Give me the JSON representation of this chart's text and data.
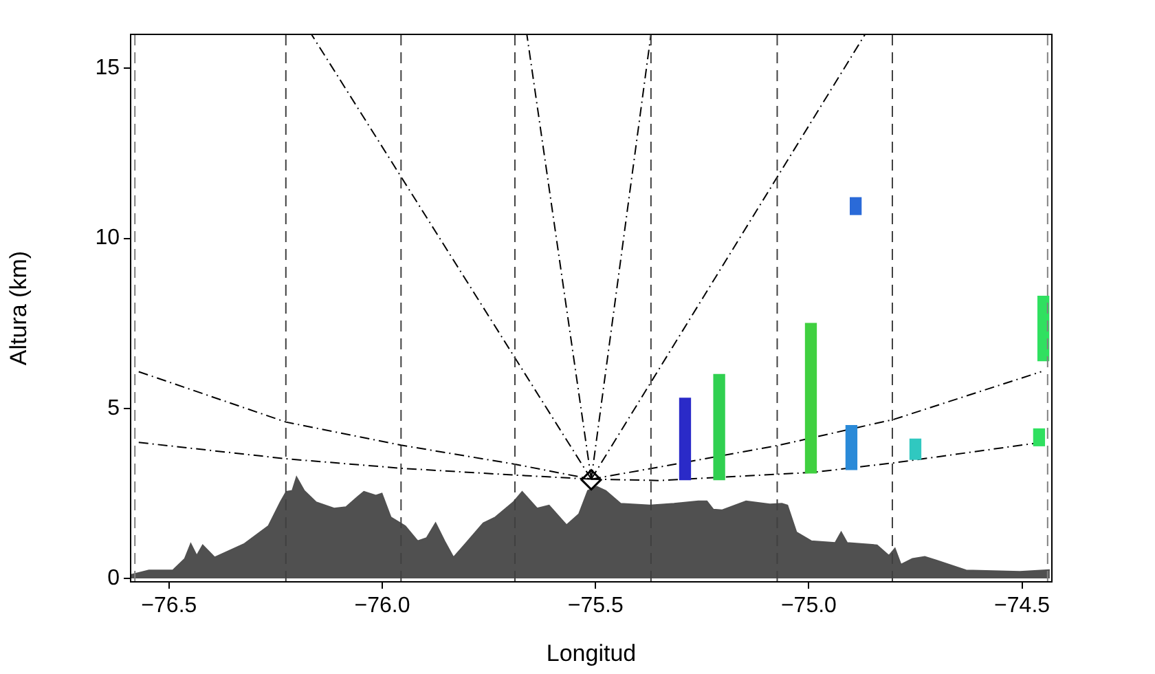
{
  "chart_data": {
    "type": "area",
    "xlabel": "Longitud",
    "ylabel": "Altura (km)",
    "xlim": [
      -76.59,
      -74.43
    ],
    "ylim": [
      -0.1,
      16
    ],
    "xticks": [
      {
        "value": -76.5,
        "label": "−76.5"
      },
      {
        "value": -76.0,
        "label": "−76.0"
      },
      {
        "value": -75.5,
        "label": "−75.5"
      },
      {
        "value": -75.0,
        "label": "−75.0"
      },
      {
        "value": -74.5,
        "label": "−74.5"
      }
    ],
    "yticks": [
      0,
      5,
      10,
      15
    ],
    "grid": false,
    "legend": false,
    "series": [
      {
        "color": "#505050",
        "x": [
          -76.589,
          -76.547,
          -76.491,
          -76.463,
          -76.449,
          -76.435,
          -76.421,
          -76.393,
          -76.323,
          -76.267,
          -76.239,
          -76.225,
          -76.211,
          -76.201,
          -76.183,
          -76.155,
          -76.113,
          -76.085,
          -76.057,
          -76.043,
          -76.015,
          -76.001,
          -75.98,
          -75.946,
          -75.917,
          -75.896,
          -75.875,
          -75.854,
          -75.833,
          -75.805,
          -75.763,
          -75.735,
          -75.693,
          -75.672,
          -75.637,
          -75.609,
          -75.568,
          -75.539,
          -75.518,
          -75.497,
          -75.476,
          -75.441,
          -75.372,
          -75.316,
          -75.259,
          -75.239,
          -75.224,
          -75.203,
          -75.147,
          -75.091,
          -75.063,
          -75.05,
          -75.029,
          -74.994,
          -74.938,
          -74.924,
          -74.91,
          -74.84,
          -74.812,
          -74.798,
          -74.784,
          -74.757,
          -74.728,
          -74.7,
          -74.631,
          -74.505,
          -74.435
        ],
        "values": [
          0.11,
          0.24,
          0.24,
          0.58,
          1.02,
          0.67,
          0.98,
          0.62,
          1.02,
          1.54,
          2.24,
          2.55,
          2.58,
          2.98,
          2.58,
          2.24,
          2.06,
          2.1,
          2.41,
          2.55,
          2.44,
          2.5,
          1.8,
          1.54,
          1.1,
          1.19,
          1.63,
          1.1,
          0.62,
          1.02,
          1.63,
          1.8,
          2.24,
          2.55,
          2.06,
          2.15,
          1.57,
          1.89,
          2.58,
          2.7,
          2.58,
          2.2,
          2.15,
          2.2,
          2.27,
          2.27,
          2.03,
          2.01,
          2.27,
          2.18,
          2.2,
          2.15,
          1.36,
          1.1,
          1.05,
          1.36,
          1.05,
          0.98,
          0.67,
          0.88,
          0.41,
          0.58,
          0.64,
          0.53,
          0.24,
          0.2,
          0.25
        ]
      },
      {
        "type": "line",
        "color": "#000000",
        "line_style": "dashdot",
        "x": [
          -75.51,
          -76.166
        ],
        "values": [
          2.92,
          16
        ]
      },
      {
        "type": "line",
        "color": "#000000",
        "line_style": "dashdot",
        "x": [
          -75.51,
          -75.661
        ],
        "values": [
          2.92,
          16
        ]
      },
      {
        "type": "line",
        "color": "#000000",
        "line_style": "dashdot",
        "x": [
          -75.51,
          -75.37
        ],
        "values": [
          2.92,
          16
        ]
      },
      {
        "type": "line",
        "color": "#000000",
        "line_style": "dashdot",
        "x": [
          -75.51,
          -74.868
        ],
        "values": [
          2.92,
          16
        ]
      },
      {
        "type": "line",
        "color": "#000000",
        "line_style": "dashdot",
        "x": [
          -76.571,
          -76.226,
          -75.956,
          -75.689,
          -75.51
        ],
        "values": [
          6.08,
          4.6,
          3.92,
          3.36,
          2.92
        ]
      },
      {
        "type": "line",
        "color": "#000000",
        "line_style": "dashdot",
        "x": [
          -76.571,
          -76.226,
          -75.956,
          -75.689,
          -75.51
        ],
        "values": [
          4.0,
          3.52,
          3.24,
          3.04,
          2.92
        ]
      },
      {
        "type": "line",
        "color": "#000000",
        "line_style": "dashdot",
        "x": [
          -75.51,
          -75.349,
          -75.069,
          -74.8,
          -74.455
        ],
        "values": [
          2.92,
          3.28,
          3.92,
          4.68,
          6.08
        ]
      },
      {
        "type": "line",
        "color": "#000000",
        "line_style": "dashdot",
        "x": [
          -75.51,
          -75.349,
          -74.99,
          -74.8,
          -74.455
        ],
        "values": [
          2.92,
          2.88,
          3.12,
          3.4,
          4.0
        ]
      },
      {
        "type": "scatter",
        "color": "#000000",
        "marker": "diamond",
        "x": [
          -75.51
        ],
        "values": [
          2.9
        ]
      },
      {
        "type": "bar",
        "x": [
          -75.29,
          -75.21,
          -74.995,
          -74.9,
          -74.89,
          -74.75,
          -74.46,
          -74.45
        ],
        "base": [
          2.9,
          2.9,
          3.1,
          3.2,
          10.7,
          3.5,
          3.9,
          6.4
        ],
        "values": [
          2.4,
          3.1,
          4.4,
          1.3,
          0.5,
          0.6,
          0.5,
          1.9
        ],
        "colors": [
          "#2a2ac8",
          "#30d050",
          "#40d040",
          "#2a8ad8",
          "#2a6ad8",
          "#30c8c0",
          "#30e060",
          "#30e060"
        ]
      }
    ],
    "ref_lines": [
      {
        "axis": "x",
        "value": -76.58,
        "color": "#808080",
        "line_style": "dashed"
      },
      {
        "axis": "x",
        "value": -76.226,
        "color": "#404040",
        "line_style": "dashed"
      },
      {
        "axis": "x",
        "value": -75.956,
        "color": "#404040",
        "line_style": "dashed"
      },
      {
        "axis": "x",
        "value": -75.689,
        "color": "#404040",
        "line_style": "dashed"
      },
      {
        "axis": "x",
        "value": -75.37,
        "color": "#404040",
        "line_style": "dashed"
      },
      {
        "axis": "x",
        "value": -75.074,
        "color": "#404040",
        "line_style": "dashed"
      },
      {
        "axis": "x",
        "value": -74.804,
        "color": "#404040",
        "line_style": "dashed"
      },
      {
        "axis": "x",
        "value": -74.44,
        "color": "#808080",
        "line_style": "dashed"
      }
    ]
  }
}
